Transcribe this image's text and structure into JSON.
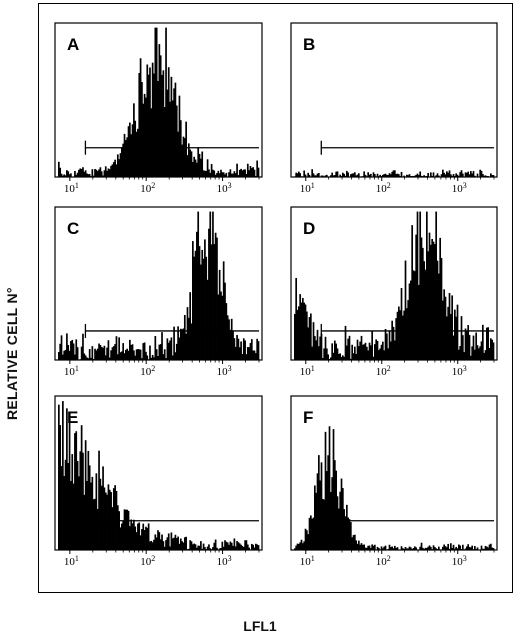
{
  "figure": {
    "ylabel": "RELATIVE CELL N°",
    "xlabel": "LFL1"
  },
  "colors": {
    "ink": "#000000",
    "paper": "#ffffff"
  },
  "chart_data": [
    {
      "type": "histogram",
      "panel": "A",
      "xscale": "log",
      "xlim": [
        7,
        3000
      ],
      "ticks": [
        {
          "base": "10",
          "exp": "1",
          "value": 10
        },
        {
          "base": "10",
          "exp": "2",
          "value": 100
        },
        {
          "base": "10",
          "exp": "3",
          "value": 1000
        }
      ],
      "gate": [
        16,
        3000
      ],
      "peaks": [
        {
          "center": 140,
          "width": 0.25,
          "height": 0.78
        }
      ],
      "noise": 0.06
    },
    {
      "type": "histogram",
      "panel": "B",
      "xscale": "log",
      "xlim": [
        7,
        3000
      ],
      "ticks": [
        {
          "base": "10",
          "exp": "1",
          "value": 10
        },
        {
          "base": "10",
          "exp": "2",
          "value": 100
        },
        {
          "base": "10",
          "exp": "3",
          "value": 1000
        }
      ],
      "gate": [
        16,
        3000
      ],
      "peaks": [],
      "noise": 0.04
    },
    {
      "type": "histogram",
      "panel": "C",
      "xscale": "log",
      "xlim": [
        7,
        3000
      ],
      "ticks": [
        {
          "base": "10",
          "exp": "1",
          "value": 10
        },
        {
          "base": "10",
          "exp": "2",
          "value": 100
        },
        {
          "base": "10",
          "exp": "3",
          "value": 1000
        }
      ],
      "gate": [
        16,
        3000
      ],
      "peaks": [
        {
          "center": 650,
          "width": 0.17,
          "height": 0.9
        }
      ],
      "noise": 0.12
    },
    {
      "type": "histogram",
      "panel": "D",
      "xscale": "log",
      "xlim": [
        7,
        3000
      ],
      "ticks": [
        {
          "base": "10",
          "exp": "1",
          "value": 10
        },
        {
          "base": "10",
          "exp": "2",
          "value": 100
        },
        {
          "base": "10",
          "exp": "3",
          "value": 1000
        }
      ],
      "gate": [
        16,
        3000
      ],
      "peaks": [
        {
          "center": 380,
          "width": 0.22,
          "height": 0.8
        },
        {
          "center": 8,
          "width": 0.12,
          "height": 0.28
        }
      ],
      "noise": 0.14
    },
    {
      "type": "histogram",
      "panel": "E",
      "xscale": "log",
      "xlim": [
        7,
        3000
      ],
      "ticks": [
        {
          "base": "10",
          "exp": "1",
          "value": 10
        },
        {
          "base": "10",
          "exp": "2",
          "value": 100
        },
        {
          "base": "10",
          "exp": "3",
          "value": 1000
        }
      ],
      "gate": [
        16,
        3000
      ],
      "peaks": [
        {
          "center": 7.5,
          "width": 0.55,
          "height": 0.68
        }
      ],
      "noise": 0.06
    },
    {
      "type": "histogram",
      "panel": "F",
      "xscale": "log",
      "xlim": [
        7,
        3000
      ],
      "ticks": [
        {
          "base": "10",
          "exp": "1",
          "value": 10
        },
        {
          "base": "10",
          "exp": "2",
          "value": 100
        },
        {
          "base": "10",
          "exp": "3",
          "value": 1000
        }
      ],
      "gate": [
        16,
        3000
      ],
      "peaks": [
        {
          "center": 20,
          "width": 0.16,
          "height": 0.6
        }
      ],
      "noise": 0.04
    }
  ]
}
